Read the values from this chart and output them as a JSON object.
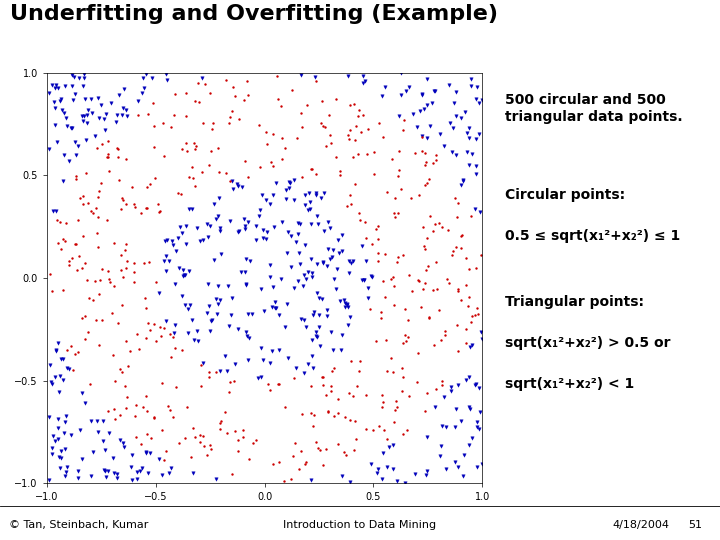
{
  "title": "Underfitting and Overfitting (Example)",
  "title_fontsize": 16,
  "title_fontweight": "bold",
  "line1_color": "#00BFFF",
  "line2_color": "#BB00BB",
  "scatter_xlim": [
    -1,
    1
  ],
  "scatter_ylim": [
    -1,
    1
  ],
  "n_points": 500,
  "circle_color": "#CC0000",
  "triangle_color": "#0000BB",
  "circle_marker": "o",
  "triangle_marker": "v",
  "circle_ms": 3,
  "triangle_ms": 6,
  "scatter_tick_locs": [
    -1,
    -0.5,
    0,
    0.5,
    1
  ],
  "text_content": [
    {
      "text": "500 circular and 500\ntriangular data points.",
      "bold": true,
      "gap_after": true
    },
    {
      "text": "Circular points:",
      "bold": true,
      "gap_after": false
    },
    {
      "text": "0.5 ≤ sqrt(x₁²+x₂²) ≤ 1",
      "bold": true,
      "gap_after": true
    },
    {
      "text": "Triangular points:",
      "bold": true,
      "gap_after": false
    },
    {
      "text": "sqrt(x₁²+x₂²) > 0.5 or",
      "bold": true,
      "gap_after": false
    },
    {
      "text": "sqrt(x₁²+x₂²) < 1",
      "bold": true,
      "gap_after": false
    }
  ],
  "text_fontsize": 10,
  "footer_left": "© Tan, Steinbach, Kumar",
  "footer_center": "Introduction to Data Mining",
  "footer_right": "4/18/2004",
  "footer_page": "51",
  "footer_fontsize": 8,
  "bg_color": "#FFFFFF",
  "random_seed": 42
}
